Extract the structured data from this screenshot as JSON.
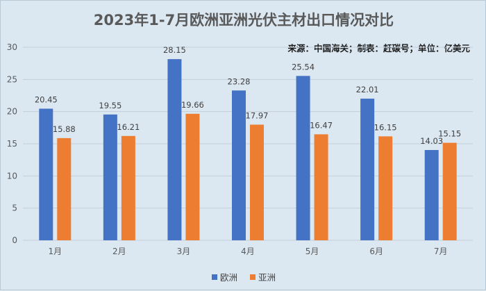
{
  "title": "2023年1-7月欧洲亚洲光伏主材出口情况对比",
  "source_note": "来源：中国海关；制表：赶碳号；单位：亿美元",
  "colors": {
    "europe": "#4472c4",
    "asia": "#ed7d31",
    "gridline": "#c4ced8"
  },
  "chart_data": {
    "type": "bar",
    "categories": [
      "1月",
      "2月",
      "3月",
      "4月",
      "5月",
      "6月",
      "7月"
    ],
    "series": [
      {
        "name": "欧洲",
        "values": [
          20.45,
          19.55,
          28.15,
          23.28,
          25.54,
          22.01,
          14.03
        ]
      },
      {
        "name": "亚洲",
        "values": [
          15.88,
          16.21,
          19.66,
          17.97,
          16.47,
          16.15,
          15.15
        ]
      }
    ],
    "ylim": [
      0,
      30
    ],
    "yticks": [
      0,
      5,
      10,
      15,
      20,
      25,
      30
    ],
    "grid": true,
    "legend_position": "bottom"
  }
}
